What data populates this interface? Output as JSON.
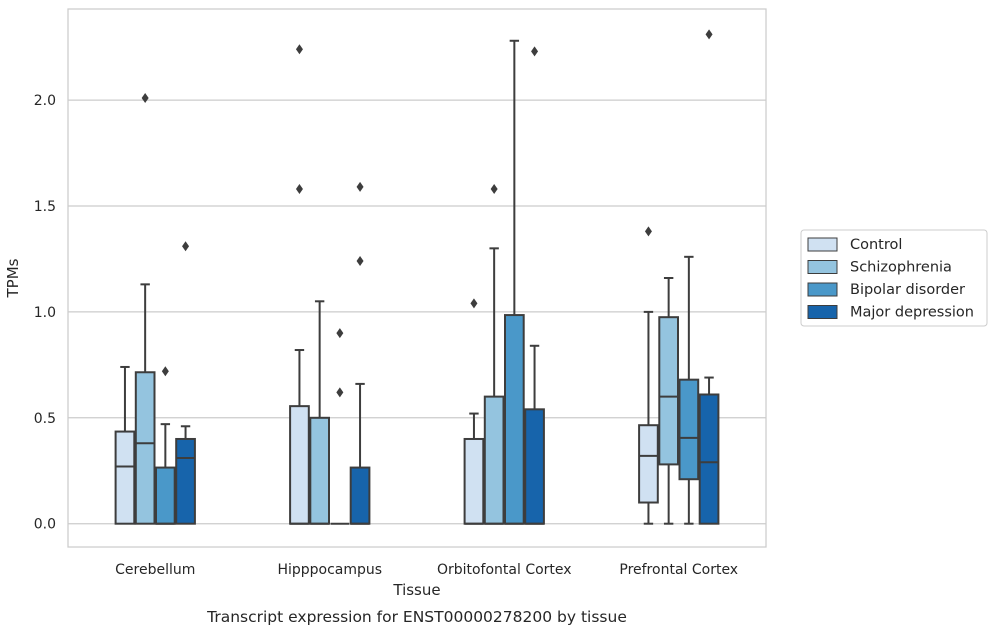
{
  "chart_data": {
    "type": "box",
    "xlabel": "Tissue",
    "ylabel": "TPMs",
    "caption": "Transcript expression for ENST00000278200 by tissue",
    "categories": [
      "Cerebellum",
      "Hipppocampus",
      "Orbitofontal Cortex",
      "Prefrontal Cortex"
    ],
    "ylim": [
      -0.11,
      2.43
    ],
    "yticks": [
      "0.0",
      "0.5",
      "1.0",
      "1.5",
      "2.0"
    ],
    "grid": "horizontal",
    "legend_position": "right",
    "series": [
      {
        "name": "Control",
        "color": "#d0e1f2",
        "boxes": [
          {
            "q1": 0.0,
            "median": 0.27,
            "q3": 0.435,
            "whisker_low": 0.0,
            "whisker_high": 0.74,
            "outliers": []
          },
          {
            "q1": 0.0,
            "median": 0.0,
            "q3": 0.555,
            "whisker_low": 0.0,
            "whisker_high": 0.82,
            "outliers": [
              1.58,
              2.24
            ]
          },
          {
            "q1": 0.0,
            "median": 0.0,
            "q3": 0.4,
            "whisker_low": 0.0,
            "whisker_high": 0.52,
            "outliers": [
              1.04
            ]
          },
          {
            "q1": 0.1,
            "median": 0.32,
            "q3": 0.465,
            "whisker_low": 0.0,
            "whisker_high": 1.0,
            "outliers": [
              1.38
            ]
          }
        ]
      },
      {
        "name": "Schizophrenia",
        "color": "#94c4df",
        "boxes": [
          {
            "q1": 0.0,
            "median": 0.38,
            "q3": 0.715,
            "whisker_low": 0.0,
            "whisker_high": 1.13,
            "outliers": [
              2.01
            ]
          },
          {
            "q1": 0.0,
            "median": 0.0,
            "q3": 0.5,
            "whisker_low": 0.0,
            "whisker_high": 1.05,
            "outliers": []
          },
          {
            "q1": 0.0,
            "median": 0.0,
            "q3": 0.6,
            "whisker_low": 0.0,
            "whisker_high": 1.3,
            "outliers": [
              1.58
            ]
          },
          {
            "q1": 0.28,
            "median": 0.6,
            "q3": 0.975,
            "whisker_low": 0.0,
            "whisker_high": 1.16,
            "outliers": []
          }
        ]
      },
      {
        "name": "Bipolar disorder",
        "color": "#4a98c9",
        "boxes": [
          {
            "q1": 0.0,
            "median": 0.0,
            "q3": 0.265,
            "whisker_low": 0.0,
            "whisker_high": 0.47,
            "outliers": [
              0.72
            ]
          },
          {
            "q1": 0.0,
            "median": 0.0,
            "q3": 0.0,
            "whisker_low": 0.0,
            "whisker_high": 0.0,
            "outliers": [
              0.62,
              0.9
            ]
          },
          {
            "q1": 0.0,
            "median": 0.0,
            "q3": 0.985,
            "whisker_low": 0.0,
            "whisker_high": 2.28,
            "outliers": []
          },
          {
            "q1": 0.21,
            "median": 0.405,
            "q3": 0.68,
            "whisker_low": 0.0,
            "whisker_high": 1.26,
            "outliers": []
          }
        ]
      },
      {
        "name": "Major depression",
        "color": "#1764ab",
        "boxes": [
          {
            "q1": 0.0,
            "median": 0.31,
            "q3": 0.4,
            "whisker_low": 0.0,
            "whisker_high": 0.46,
            "outliers": [
              1.31
            ]
          },
          {
            "q1": 0.0,
            "median": 0.0,
            "q3": 0.265,
            "whisker_low": 0.0,
            "whisker_high": 0.66,
            "outliers": [
              1.24,
              1.59
            ]
          },
          {
            "q1": 0.0,
            "median": 0.0,
            "q3": 0.54,
            "whisker_low": 0.0,
            "whisker_high": 0.84,
            "outliers": [
              2.23
            ]
          },
          {
            "q1": 0.0,
            "median": 0.29,
            "q3": 0.61,
            "whisker_low": 0.0,
            "whisker_high": 0.69,
            "outliers": [
              2.31
            ]
          }
        ]
      }
    ]
  }
}
